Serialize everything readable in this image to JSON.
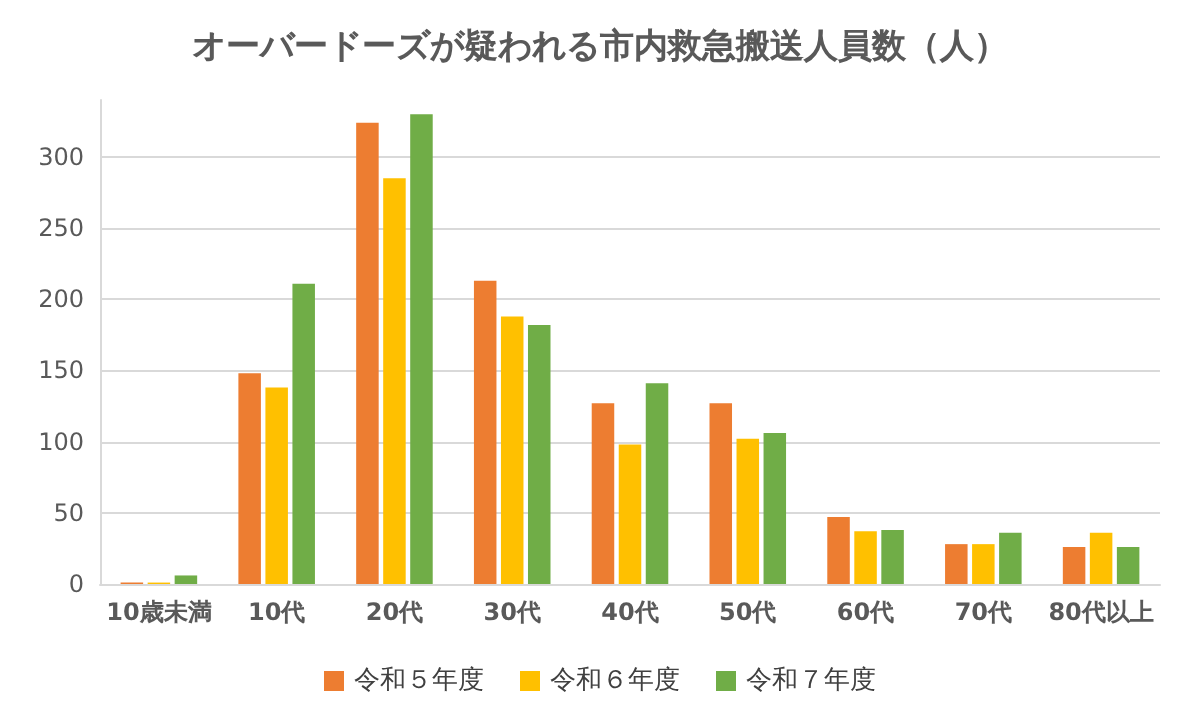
{
  "chart_data": {
    "type": "bar",
    "title": "オーバードーズが疑われる市内救急搬送人員数（人）",
    "categories": [
      "10歳未満",
      "10代",
      "20代",
      "30代",
      "40代",
      "50代",
      "60代",
      "70代",
      "80代以上"
    ],
    "series": [
      {
        "name": "令和５年度",
        "color": "#ed7d31",
        "values": [
          1,
          148,
          324,
          213,
          127,
          127,
          47,
          28,
          26
        ]
      },
      {
        "name": "令和６年度",
        "color": "#ffc000",
        "values": [
          1,
          138,
          285,
          188,
          98,
          102,
          37,
          28,
          36
        ]
      },
      {
        "name": "令和７年度",
        "color": "#70ad47",
        "values": [
          6,
          211,
          330,
          182,
          141,
          106,
          38,
          36,
          26
        ]
      }
    ],
    "ylim": [
      0,
      340
    ],
    "yticks": [
      0,
      50,
      100,
      150,
      200,
      250,
      300
    ],
    "grid": "y",
    "legend": "bottom"
  }
}
